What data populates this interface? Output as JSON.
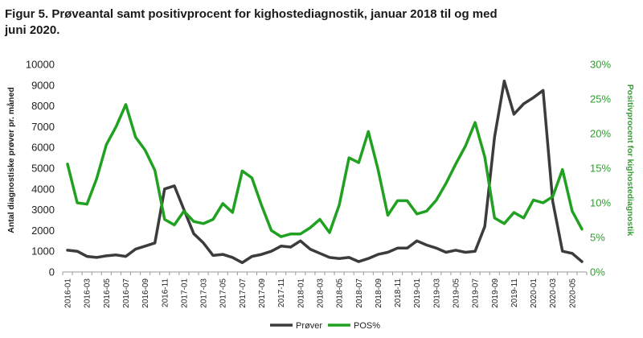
{
  "title": "Figur 5. Prøveantal samt positivprocent for kighostediagnostik, januar 2018 til og med juni 2020.",
  "chart_data": {
    "type": "line",
    "title": "Figur 5. Prøveantal samt positivprocent for kighostediagnostik, januar 2018 til og med juni 2020.",
    "ylabel_left": "Antal diagnostiske prøver pr. måned",
    "ylabel_right": "Positivprocent for kighostediagnostik",
    "ylim_left": [
      0,
      10000
    ],
    "ylim_right": [
      0,
      30
    ],
    "yticks_left": [
      "0",
      "1000",
      "2000",
      "3000",
      "4000",
      "5000",
      "6000",
      "7000",
      "8000",
      "9000",
      "10000"
    ],
    "yticks_right": [
      "0%",
      "5%",
      "10%",
      "15%",
      "20%",
      "25%",
      "30%"
    ],
    "x": [
      "2016-01",
      "2016-02",
      "2016-03",
      "2016-04",
      "2016-05",
      "2016-06",
      "2016-07",
      "2016-08",
      "2016-09",
      "2016-10",
      "2016-11",
      "2016-12",
      "2017-01",
      "2017-02",
      "2017-03",
      "2017-04",
      "2017-05",
      "2017-06",
      "2017-07",
      "2017-08",
      "2017-09",
      "2017-10",
      "2017-11",
      "2017-12",
      "2018-01",
      "2018-02",
      "2018-03",
      "2018-04",
      "2018-05",
      "2018-06",
      "2018-07",
      "2018-08",
      "2018-09",
      "2018-10",
      "2018-11",
      "2018-12",
      "2019-01",
      "2019-02",
      "2019-03",
      "2019-04",
      "2019-05",
      "2019-06",
      "2019-07",
      "2019-08",
      "2019-09",
      "2019-10",
      "2019-11",
      "2019-12",
      "2020-01",
      "2020-02",
      "2020-03",
      "2020-04",
      "2020-05",
      "2020-06"
    ],
    "xticks": [
      "2016-01",
      "2016-03",
      "2016-05",
      "2016-07",
      "2016-09",
      "2016-11",
      "2017-01",
      "2017-03",
      "2017-05",
      "2017-07",
      "2017-09",
      "2017-11",
      "2018-01",
      "2018-03",
      "2018-05",
      "2018-07",
      "2018-09",
      "2018-11",
      "2019-01",
      "2019-03",
      "2019-05",
      "2019-07",
      "2019-09",
      "2019-11",
      "2020-01",
      "2020-03",
      "2020-05"
    ],
    "series": [
      {
        "name": "Prøver",
        "axis": "left",
        "color": "#3c3c3c",
        "values": [
          1050,
          1000,
          750,
          700,
          780,
          820,
          750,
          1100,
          1250,
          1400,
          4000,
          4150,
          3000,
          1850,
          1400,
          800,
          850,
          700,
          450,
          750,
          850,
          1000,
          1250,
          1200,
          1500,
          1100,
          900,
          700,
          650,
          700,
          500,
          650,
          850,
          950,
          1150,
          1150,
          1500,
          1300,
          1150,
          950,
          1050,
          950,
          1000,
          2200,
          6500,
          9200,
          7600,
          8100,
          8400,
          8750,
          3400,
          1000,
          900,
          500
        ]
      },
      {
        "name": "POS%",
        "axis": "right",
        "color": "#21a121",
        "values": [
          15.6,
          10.0,
          9.8,
          13.5,
          18.4,
          21.0,
          24.2,
          19.5,
          17.6,
          14.7,
          7.6,
          6.8,
          8.8,
          7.3,
          7.0,
          7.6,
          9.9,
          8.6,
          14.6,
          13.6,
          9.6,
          6.0,
          5.1,
          5.5,
          5.5,
          6.4,
          7.6,
          5.7,
          9.7,
          16.5,
          15.8,
          20.3,
          14.8,
          8.2,
          10.3,
          10.3,
          8.4,
          8.8,
          10.4,
          12.8,
          15.6,
          18.2,
          21.6,
          16.6,
          7.8,
          7.0,
          8.6,
          7.8,
          10.4,
          10.0,
          10.9,
          14.8,
          8.8,
          6.2
        ]
      }
    ],
    "legend": "bottom"
  }
}
